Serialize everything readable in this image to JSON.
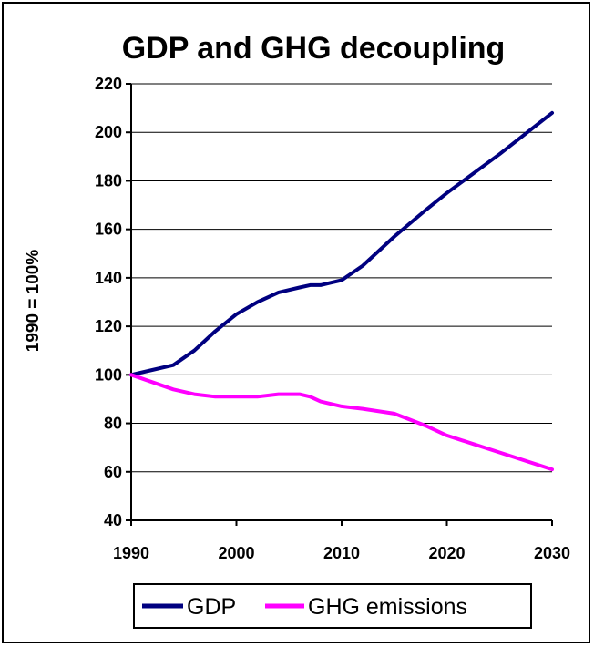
{
  "chart_data": {
    "type": "line",
    "title": "GDP and GHG decoupling",
    "xlabel": "",
    "ylabel": "1990 = 100%",
    "xlim": [
      1990,
      2030
    ],
    "ylim": [
      40,
      220
    ],
    "x_ticks": [
      1990,
      2000,
      2010,
      2020,
      2030
    ],
    "y_ticks": [
      40,
      60,
      80,
      100,
      120,
      140,
      160,
      180,
      200,
      220
    ],
    "grid": "horizontal",
    "legend": "bottom",
    "series": [
      {
        "name": "GDP",
        "color": "#000080",
        "x": [
          1990,
          1992,
          1994,
          1996,
          1998,
          2000,
          2002,
          2004,
          2005,
          2006,
          2007,
          2008,
          2009,
          2010,
          2012,
          2015,
          2018,
          2020,
          2025,
          2030
        ],
        "values": [
          100,
          102,
          104,
          110,
          118,
          125,
          130,
          134,
          135,
          136,
          137,
          137,
          138,
          139,
          145,
          157,
          168,
          175,
          191,
          208
        ]
      },
      {
        "name": "GHG emissions",
        "color": "#ff00ff",
        "x": [
          1990,
          1992,
          1994,
          1996,
          1998,
          2000,
          2002,
          2004,
          2005,
          2006,
          2007,
          2008,
          2010,
          2012,
          2015,
          2018,
          2020,
          2025,
          2030
        ],
        "values": [
          100,
          97,
          94,
          92,
          91,
          91,
          91,
          92,
          92,
          92,
          91,
          89,
          87,
          86,
          84,
          79,
          75,
          68,
          61
        ]
      }
    ]
  }
}
